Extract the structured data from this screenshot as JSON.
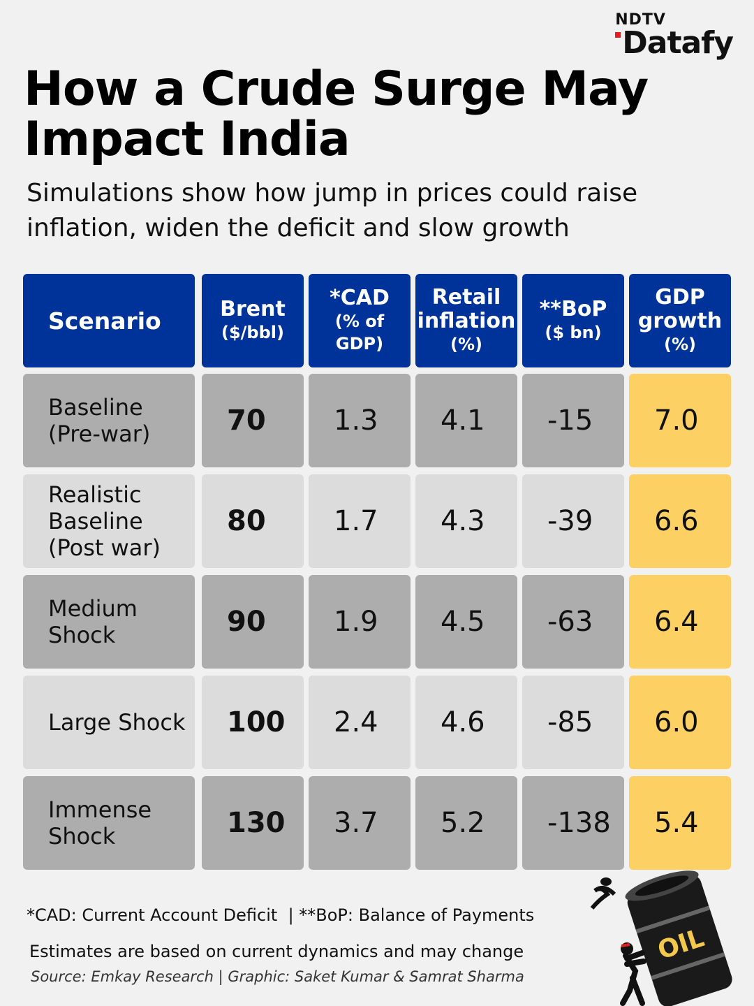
{
  "brand": {
    "top": "NDTV",
    "main": "Datafy"
  },
  "title": "How a Crude Surge May Impact India",
  "subtitle": "Simulations show how jump in prices could raise inflation, widen the deficit and slow growth",
  "chart_data": {
    "type": "table",
    "title": "How a Crude Surge May Impact India",
    "columns": [
      {
        "main": "Scenario",
        "sub": ""
      },
      {
        "main": "Brent",
        "sub": "($/bbl)"
      },
      {
        "main": "*CAD",
        "sub": "(% of GDP)"
      },
      {
        "main": "Retail inflation",
        "sub": "(%)"
      },
      {
        "main": "**BoP",
        "sub": "($ bn)"
      },
      {
        "main": "GDP growth",
        "sub": "(%)"
      }
    ],
    "rows": [
      {
        "scenario": "Baseline (Pre-war)",
        "brent": "70",
        "cad": "1.3",
        "inflation": "4.1",
        "bop": "-15",
        "gdp": "7.0"
      },
      {
        "scenario": "Realistic Baseline (Post war)",
        "brent": "80",
        "cad": "1.7",
        "inflation": "4.3",
        "bop": "-39",
        "gdp": "6.6"
      },
      {
        "scenario": "Medium Shock",
        "brent": "90",
        "cad": "1.9",
        "inflation": "4.5",
        "bop": "-63",
        "gdp": "6.4"
      },
      {
        "scenario": "Large Shock",
        "brent": "100",
        "cad": "2.4",
        "inflation": "4.6",
        "bop": "-85",
        "gdp": "6.0"
      },
      {
        "scenario": "Immense Shock",
        "brent": "130",
        "cad": "3.7",
        "inflation": "5.2",
        "bop": "-138",
        "gdp": "5.4"
      }
    ]
  },
  "footnotes": {
    "abbreviations": "*CAD: Current Account Deficit  | **BoP: Balance of Payments",
    "disclaimer": "Estimates are based on current dynamics and may change",
    "source": "Source: Emkay Research | Graphic: Saket Kumar & Samrat Sharma"
  },
  "illustration": {
    "barrel_label": "OIL"
  },
  "colors": {
    "header": "#003399",
    "row_dark": "#adadad",
    "row_light": "#dcdcdc",
    "gdp_highlight": "#fdd064",
    "background": "#f1f1f1"
  }
}
